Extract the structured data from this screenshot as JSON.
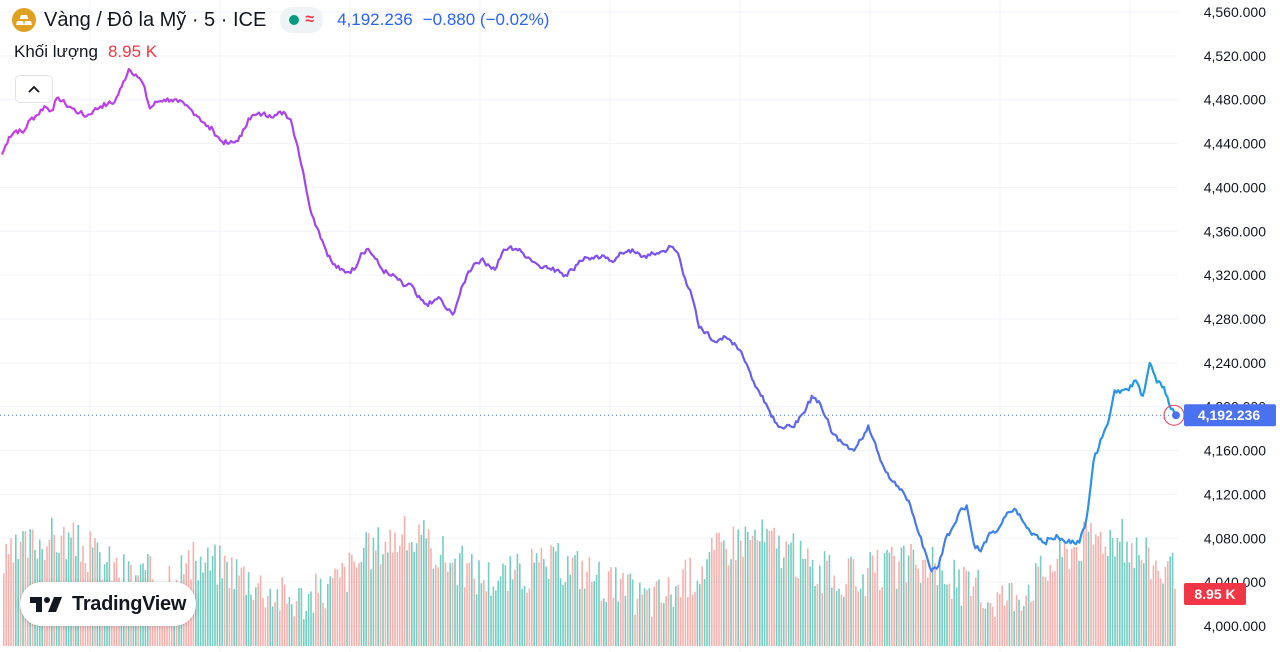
{
  "header": {
    "symbol_title": "Vàng / Đô la Mỹ · 5 · ICE",
    "logo_icon": "gold-bars-icon",
    "status_dot_color": "#089981",
    "delay_icon": "approx-icon",
    "delay_symbol": "≈",
    "delay_color": "#f23645",
    "last_price": "4,192.236",
    "change": "−0.880 (−0.02%)",
    "price_color": "#2962ff"
  },
  "volume_legend": {
    "label": "Khối lượng",
    "value": "8.95 K"
  },
  "collapse_icon": "chevron-up-icon",
  "branding": {
    "text": "TradingView"
  },
  "price_scale": {
    "ticks": [
      "4,560.000",
      "4,520.000",
      "4,480.000",
      "4,440.000",
      "4,400.000",
      "4,360.000",
      "4,320.000",
      "4,280.000",
      "4,240.000",
      "4,200.000",
      "4,160.000",
      "4,120.000",
      "4,080.000",
      "4,040.000",
      "4,000.000"
    ],
    "last_price_label": "4,192.236",
    "last_price_color": "#4a72f0",
    "volume_label": "8.95 K",
    "volume_label_color": "#f23645"
  },
  "chart_data": {
    "type": "line",
    "ylim": [
      4000,
      4560
    ],
    "y_ticks": [
      4560,
      4520,
      4480,
      4440,
      4400,
      4360,
      4320,
      4280,
      4240,
      4200,
      4160,
      4120,
      4080,
      4040,
      4000
    ],
    "last_value": 4192.236,
    "line_gradient": [
      "#c63de9",
      "#7a52f0",
      "#1e9ee8"
    ],
    "volume_colors": {
      "up": "#5ec4b6",
      "down": "#f5a3a0"
    },
    "series": [
      {
        "values": [
          4430,
          4446,
          4452,
          4450,
          4462,
          4466,
          4474,
          4470,
          4482,
          4476,
          4472,
          4468,
          4465,
          4470,
          4474,
          4476,
          4478,
          4492,
          4508,
          4503,
          4495,
          4472,
          4478,
          4480,
          4480,
          4478,
          4475,
          4470,
          4464,
          4456,
          4452,
          4443,
          4440,
          4441,
          4447,
          4463,
          4466,
          4467,
          4466,
          4466,
          4469,
          4462,
          4437,
          4406,
          4375,
          4360,
          4343,
          4330,
          4325,
          4323,
          4325,
          4340,
          4344,
          4335,
          4325,
          4320,
          4318,
          4310,
          4312,
          4300,
          4294,
          4294,
          4300,
          4290,
          4284,
          4302,
          4320,
          4330,
          4334,
          4330,
          4325,
          4340,
          4345,
          4344,
          4340,
          4335,
          4330,
          4328,
          4325,
          4325,
          4320,
          4325,
          4333,
          4336,
          4335,
          4336,
          4336,
          4333,
          4340,
          4343,
          4340,
          4337,
          4338,
          4340,
          4342,
          4346,
          4340,
          4317,
          4300,
          4272,
          4268,
          4260,
          4262,
          4262,
          4258,
          4250,
          4235,
          4218,
          4210,
          4196,
          4185,
          4180,
          4182,
          4186,
          4195,
          4210,
          4205,
          4190,
          4175,
          4170,
          4165,
          4160,
          4170,
          4183,
          4167,
          4148,
          4135,
          4128,
          4122,
          4110,
          4088,
          4070,
          4050,
          4055,
          4080,
          4090,
          4105,
          4110,
          4075,
          4068,
          4082,
          4085,
          4094,
          4104,
          4106,
          4095,
          4086,
          4083,
          4076,
          4080,
          4081,
          4076,
          4078,
          4076,
          4098,
          4150,
          4170,
          4184,
          4215,
          4215,
          4215,
          4224,
          4210,
          4240,
          4222,
          4218,
          4198,
          4192.236
        ]
      }
    ]
  }
}
